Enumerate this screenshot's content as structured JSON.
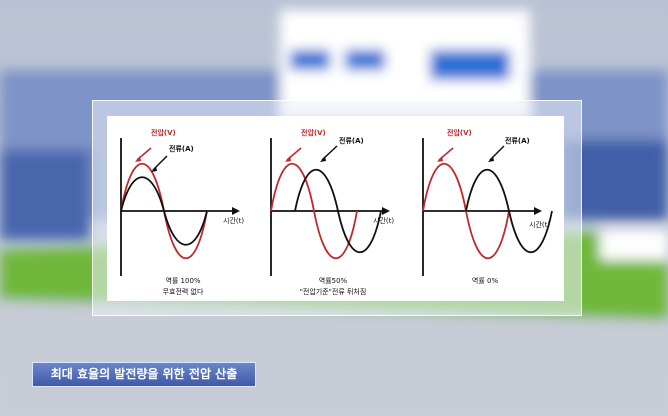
{
  "panels": [
    {
      "voltage_label": "전압(V)",
      "current_label": "전류(A)",
      "axis_label": "시간(t)",
      "caption1": "역률 100%",
      "caption2": "무효전력 없다"
    },
    {
      "voltage_label": "전압(V)",
      "current_label": "전류(A)",
      "axis_label": "시간(t)",
      "caption1": "역률50%",
      "caption2": "\"전압기준\"전류 뒤처짐"
    },
    {
      "voltage_label": "전압(V)",
      "current_label": "전류(A)",
      "axis_label": "시간(t)",
      "caption1": "역률 0%",
      "caption2": ""
    }
  ],
  "caption_bar": "최대 효율의 발전량을 위한 전압 산출",
  "colors": {
    "voltage": "#c0282d",
    "current": "#111111",
    "caption_bg": "#4a64b0"
  }
}
